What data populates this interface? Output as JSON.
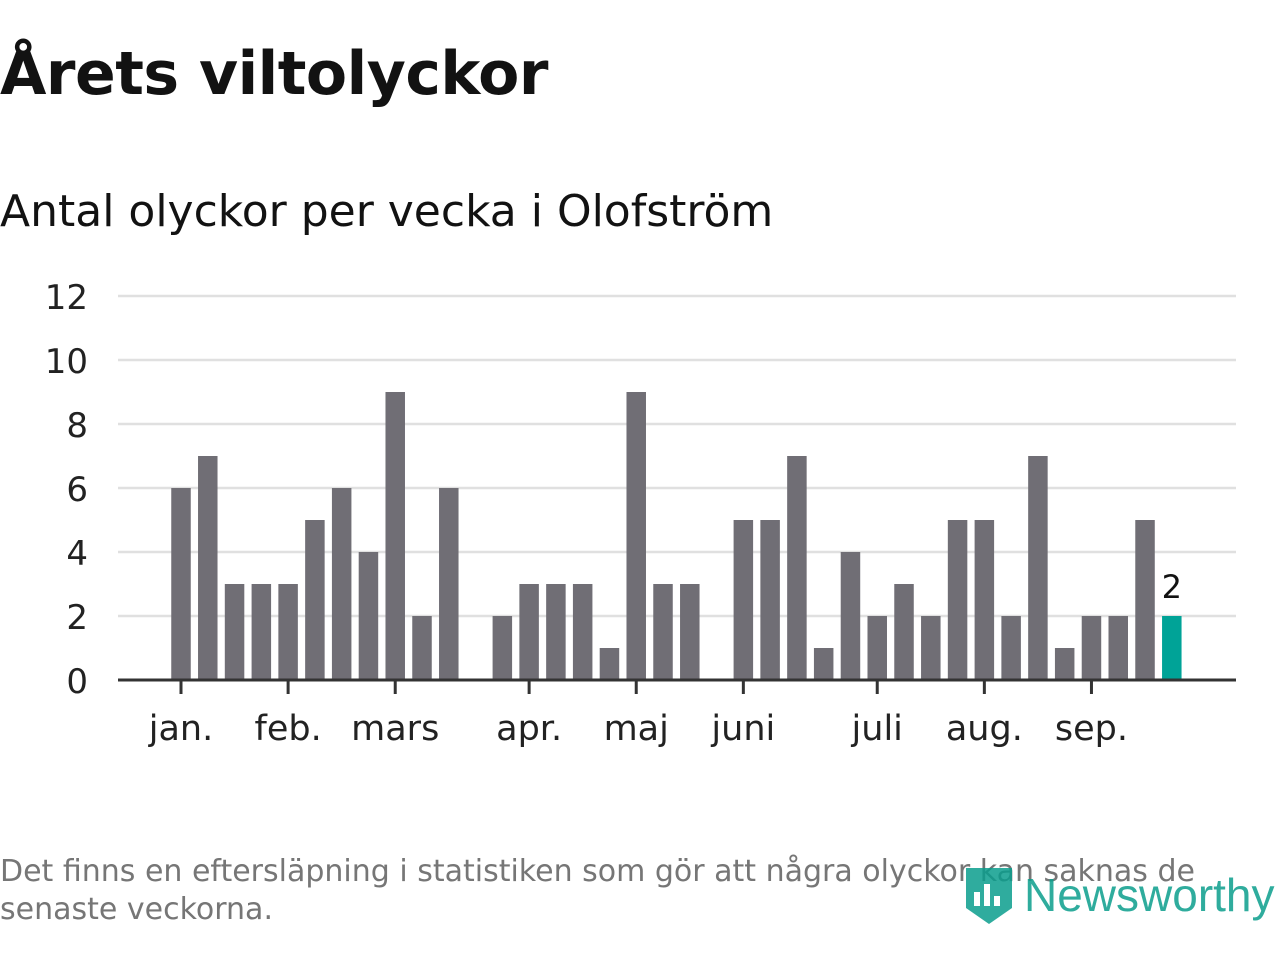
{
  "header": {
    "title": "Årets viltolyckor",
    "subtitle": "Antal olyckor per vecka i Olofström"
  },
  "chart_data": {
    "type": "bar",
    "title": "Årets viltolyckor",
    "subtitle": "Antal olyckor per vecka i Olofström",
    "xlabel": "",
    "ylabel": "",
    "ylim": [
      0,
      12
    ],
    "yticks": [
      0,
      2,
      4,
      6,
      8,
      10,
      12
    ],
    "grid": true,
    "month_labels": [
      {
        "label": "jan.",
        "week": 1
      },
      {
        "label": "feb.",
        "week": 5
      },
      {
        "label": "mars",
        "week": 9
      },
      {
        "label": "apr.",
        "week": 14
      },
      {
        "label": "maj",
        "week": 18
      },
      {
        "label": "juni",
        "week": 22
      },
      {
        "label": "juli",
        "week": 27
      },
      {
        "label": "aug.",
        "week": 31
      },
      {
        "label": "sep.",
        "week": 35
      }
    ],
    "weeks": [
      1,
      2,
      3,
      4,
      5,
      6,
      7,
      8,
      9,
      10,
      11,
      12,
      13,
      14,
      15,
      16,
      17,
      18,
      19,
      20,
      21,
      22,
      23,
      24,
      25,
      26,
      27,
      28,
      29,
      30,
      31,
      32,
      33,
      34,
      35,
      36,
      37,
      38
    ],
    "values": [
      6,
      7,
      3,
      3,
      3,
      5,
      6,
      4,
      9,
      2,
      6,
      0,
      2,
      3,
      3,
      3,
      1,
      9,
      3,
      3,
      0,
      5,
      5,
      7,
      1,
      4,
      2,
      3,
      2,
      5,
      5,
      2,
      7,
      1,
      2,
      2,
      5,
      2
    ],
    "highlight": {
      "index": 37,
      "label": "2",
      "color": "#00a397"
    },
    "bar_color": "#706e75",
    "axis_color": "#333333",
    "grid_color": "#e0e0e0"
  },
  "footer": {
    "note": "Det finns en eftersläpning i statistiken som gör att några olyckor kan saknas de senaste veckorna.",
    "brand": "Newsworthy",
    "brand_icon": "newsworthy-logo-icon",
    "brand_color": "#0b9e8d"
  }
}
